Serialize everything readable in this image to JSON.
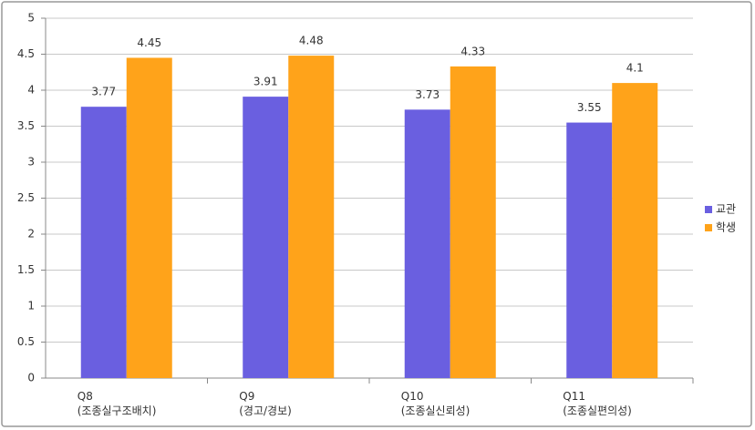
{
  "chart_data": {
    "type": "bar",
    "categories": [
      "Q8\n(조종실구조배치)",
      "Q9\n(경고/경보)",
      "Q10\n(조종실신뢰성)",
      "Q11\n(조종실편의성)"
    ],
    "series": [
      {
        "name": "교관",
        "color": "#6a5fe0",
        "values": [
          3.77,
          3.91,
          3.73,
          3.55
        ]
      },
      {
        "name": "학생",
        "color": "#ffa31a",
        "values": [
          4.45,
          4.48,
          4.33,
          4.1
        ]
      }
    ],
    "ylim": [
      0,
      5
    ],
    "yticks": [
      0,
      0.5,
      1,
      1.5,
      2,
      2.5,
      3,
      3.5,
      4,
      4.5,
      5
    ],
    "grid": true,
    "legend": "right"
  }
}
